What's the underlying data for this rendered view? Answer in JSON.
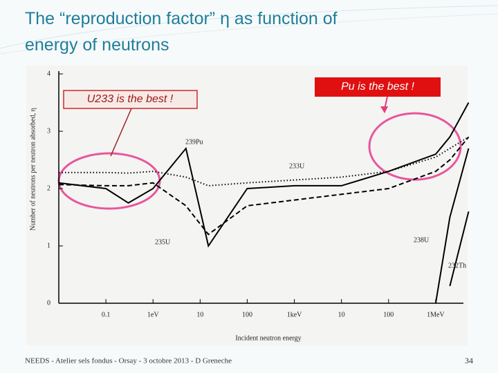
{
  "title": "The “reproduction factor” η as function of energy of neutrons",
  "annotations": [
    "U233 is the best !",
    "Pu is the best !"
  ],
  "footer": "NEEDS - Atelier sels fondus - Orsay - 3 octobre 2013 - D Greneche",
  "page_number": 34,
  "chart_data": {
    "type": "line",
    "xlabel": "Incident neutron energy",
    "ylabel": "Number of neutrons per neutron absorbed, η",
    "xlog": true,
    "x": [
      0.01,
      0.1,
      0.3,
      1,
      5,
      15,
      100,
      1000,
      10000,
      100000,
      1000000,
      2000000,
      5000000
    ],
    "xlim": [
      0.01,
      10000000
    ],
    "xticks": [
      0.1,
      {
        "value": 1,
        "label": "1eV"
      },
      10,
      100,
      {
        "value": 1000,
        "label": "1keV"
      },
      {
        "value": 10000,
        "label": "10"
      },
      {
        "value": 100000,
        "label": "100"
      },
      {
        "value": 1000000,
        "label": "1MeV"
      }
    ],
    "ylim": [
      0,
      4
    ],
    "yticks": [
      0,
      1,
      2,
      3,
      4
    ],
    "series": [
      {
        "name": "233U",
        "color": "#000000",
        "style": "dotted",
        "values": [
          2.28,
          2.28,
          2.27,
          2.3,
          2.2,
          2.05,
          2.1,
          2.15,
          2.2,
          2.3,
          2.55,
          2.7,
          2.9
        ]
      },
      {
        "name": "239Pu",
        "color": "#000000",
        "style": "solid",
        "values": [
          2.1,
          2.0,
          1.75,
          2.0,
          2.7,
          1.0,
          2.0,
          2.05,
          2.05,
          2.3,
          2.6,
          2.9,
          3.5
        ]
      },
      {
        "name": "235U",
        "color": "#000000",
        "style": "dashed",
        "values": [
          2.07,
          2.05,
          2.05,
          2.1,
          1.7,
          1.2,
          1.7,
          1.8,
          1.9,
          2.0,
          2.3,
          2.5,
          2.9
        ]
      },
      {
        "name": "238U",
        "color": "#000000",
        "style": "solid",
        "values": [
          null,
          null,
          null,
          null,
          null,
          null,
          null,
          null,
          null,
          null,
          0.0,
          1.5,
          2.7
        ]
      },
      {
        "name": "232Th",
        "color": "#000000",
        "style": "solid",
        "values": [
          null,
          null,
          null,
          null,
          null,
          null,
          null,
          null,
          null,
          null,
          null,
          0.3,
          1.6
        ]
      }
    ]
  }
}
